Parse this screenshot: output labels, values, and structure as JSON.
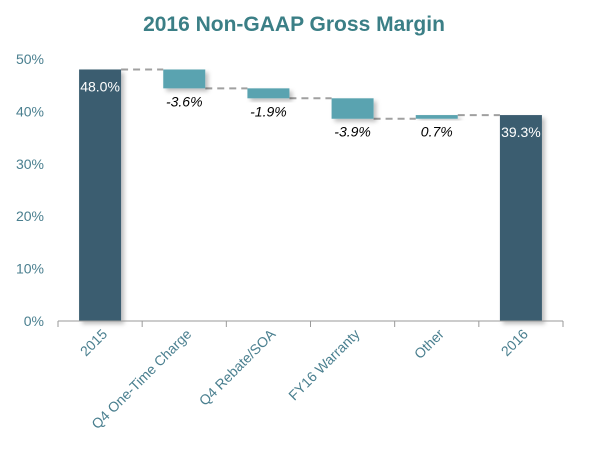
{
  "chart_data": {
    "type": "bar",
    "subtype": "waterfall",
    "title": "2016 Non-GAAP Gross Margin",
    "xlabel": "",
    "ylabel": "",
    "ylim": [
      0,
      50
    ],
    "yticks": [
      0,
      10,
      20,
      30,
      40,
      50
    ],
    "ytick_labels": [
      "0%",
      "10%",
      "20%",
      "30%",
      "40%",
      "50%"
    ],
    "categories": [
      "2015",
      "Q4 One-Time Charge",
      "Q4 Rebate/SOA",
      "FY16 Warranty",
      "Other",
      "2016"
    ],
    "values": [
      48.0,
      -3.6,
      -1.9,
      -3.9,
      0.7,
      39.3
    ],
    "kinds": [
      "total",
      "delta",
      "delta",
      "delta",
      "delta",
      "total"
    ],
    "labels": [
      "48.0%",
      "-3.6%",
      "-1.9%",
      "-3.9%",
      "0.7%",
      "39.3%"
    ],
    "connectors": "dashed",
    "grid": false,
    "legend": "none",
    "colors": {
      "total": "#3b5d70",
      "delta": "#5aa3b0",
      "title": "#3b7f86",
      "axis_text": "#4a7f8f",
      "connector": "#a0a0a0",
      "label_total": "#ffffff",
      "label_delta": "#000000"
    }
  }
}
